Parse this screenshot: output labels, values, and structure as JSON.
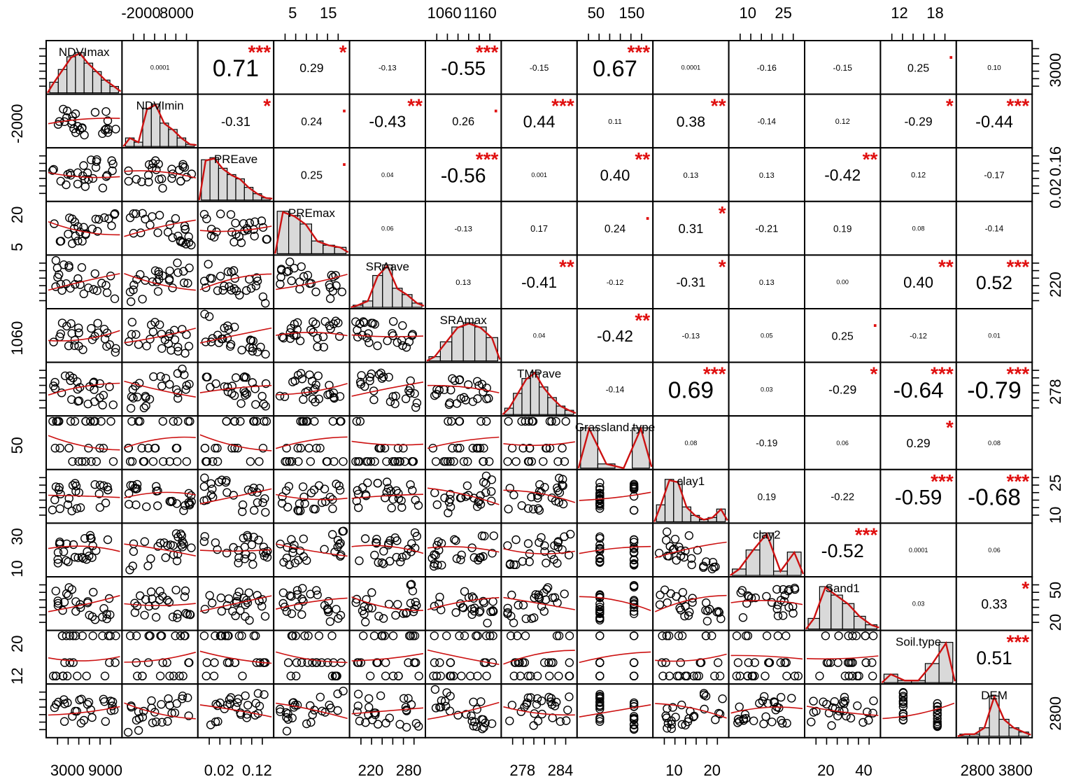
{
  "chart_data": {
    "type": "scatter",
    "variables": [
      "NDVImax",
      "NDVImin",
      "PREave",
      "PREmax",
      "SRAave",
      "SRAmax",
      "TMPave",
      "Grassland.type",
      "Clay1",
      "clay2",
      "Sand1",
      "Soil.type",
      "DEM"
    ],
    "diagonal_labels": [
      "NDVImax",
      "NDVImin",
      "PREave",
      "PREmax",
      "SRAave",
      "SRAmax",
      "TMPave",
      "Grassland.type",
      "clay1",
      "clay2",
      "Sand1",
      "Soil.type",
      "DEM"
    ],
    "top_axis_ticks": [
      [
        "-2000",
        "8000"
      ],
      [
        "5",
        "15"
      ],
      [
        "1060",
        "1160"
      ],
      [
        "50",
        "150"
      ],
      [
        "10",
        "25"
      ],
      [
        "12",
        "18"
      ]
    ],
    "bottom_axis_ticks": [
      [
        "3000",
        "9000"
      ],
      [
        "0.02",
        "0.12"
      ],
      [
        "220",
        "280"
      ],
      [
        "278",
        "284"
      ],
      [
        "10",
        "20"
      ],
      [
        "20",
        "40"
      ],
      [
        "2800",
        "3800"
      ]
    ],
    "left_axis_ticks": [
      [
        "-2000"
      ],
      [
        "20",
        "5"
      ],
      [
        "1060"
      ],
      [
        "50"
      ],
      [
        "30",
        "10"
      ],
      [
        "20",
        "12"
      ]
    ],
    "right_axis_ticks": [
      [
        "3000"
      ],
      [
        "0.16",
        "0.02"
      ],
      [
        "220"
      ],
      [
        "278"
      ],
      [
        "25",
        "10"
      ],
      [
        "50",
        "20"
      ],
      [
        "2800"
      ]
    ],
    "correlations": [
      {
        "row": 0,
        "col": 1,
        "r": "0.0001",
        "stars": ""
      },
      {
        "row": 0,
        "col": 2,
        "r": "0.71",
        "stars": "***"
      },
      {
        "row": 0,
        "col": 3,
        "r": "0.29",
        "stars": "*"
      },
      {
        "row": 0,
        "col": 4,
        "r": "-0.13",
        "stars": ""
      },
      {
        "row": 0,
        "col": 5,
        "r": "-0.55",
        "stars": "***"
      },
      {
        "row": 0,
        "col": 6,
        "r": "-0.15",
        "stars": ""
      },
      {
        "row": 0,
        "col": 7,
        "r": "0.67",
        "stars": "***"
      },
      {
        "row": 0,
        "col": 8,
        "r": "0.0001",
        "stars": ""
      },
      {
        "row": 0,
        "col": 9,
        "r": "-0.16",
        "stars": ""
      },
      {
        "row": 0,
        "col": 10,
        "r": "-0.15",
        "stars": ""
      },
      {
        "row": 0,
        "col": 11,
        "r": "0.25",
        "stars": "."
      },
      {
        "row": 0,
        "col": 12,
        "r": "0.10",
        "stars": ""
      },
      {
        "row": 1,
        "col": 2,
        "r": "-0.31",
        "stars": "*"
      },
      {
        "row": 1,
        "col": 3,
        "r": "0.24",
        "stars": "."
      },
      {
        "row": 1,
        "col": 4,
        "r": "-0.43",
        "stars": "**"
      },
      {
        "row": 1,
        "col": 5,
        "r": "0.26",
        "stars": "."
      },
      {
        "row": 1,
        "col": 6,
        "r": "0.44",
        "stars": "***"
      },
      {
        "row": 1,
        "col": 7,
        "r": "0.11",
        "stars": ""
      },
      {
        "row": 1,
        "col": 8,
        "r": "0.38",
        "stars": "**"
      },
      {
        "row": 1,
        "col": 9,
        "r": "-0.14",
        "stars": ""
      },
      {
        "row": 1,
        "col": 10,
        "r": "0.12",
        "stars": ""
      },
      {
        "row": 1,
        "col": 11,
        "r": "-0.29",
        "stars": "*"
      },
      {
        "row": 1,
        "col": 12,
        "r": "-0.44",
        "stars": "***"
      },
      {
        "row": 2,
        "col": 3,
        "r": "0.25",
        "stars": "."
      },
      {
        "row": 2,
        "col": 4,
        "r": "0.04",
        "stars": ""
      },
      {
        "row": 2,
        "col": 5,
        "r": "-0.56",
        "stars": "***"
      },
      {
        "row": 2,
        "col": 6,
        "r": "0.001",
        "stars": ""
      },
      {
        "row": 2,
        "col": 7,
        "r": "0.40",
        "stars": "**"
      },
      {
        "row": 2,
        "col": 8,
        "r": "0.13",
        "stars": ""
      },
      {
        "row": 2,
        "col": 9,
        "r": "0.13",
        "stars": ""
      },
      {
        "row": 2,
        "col": 10,
        "r": "-0.42",
        "stars": "**"
      },
      {
        "row": 2,
        "col": 11,
        "r": "0.12",
        "stars": ""
      },
      {
        "row": 2,
        "col": 12,
        "r": "-0.17",
        "stars": ""
      },
      {
        "row": 3,
        "col": 4,
        "r": "0.06",
        "stars": ""
      },
      {
        "row": 3,
        "col": 5,
        "r": "-0.13",
        "stars": ""
      },
      {
        "row": 3,
        "col": 6,
        "r": "0.17",
        "stars": ""
      },
      {
        "row": 3,
        "col": 7,
        "r": "0.24",
        "stars": "."
      },
      {
        "row": 3,
        "col": 8,
        "r": "0.31",
        "stars": "*"
      },
      {
        "row": 3,
        "col": 9,
        "r": "-0.21",
        "stars": ""
      },
      {
        "row": 3,
        "col": 10,
        "r": "0.19",
        "stars": ""
      },
      {
        "row": 3,
        "col": 11,
        "r": "0.08",
        "stars": ""
      },
      {
        "row": 3,
        "col": 12,
        "r": "-0.14",
        "stars": ""
      },
      {
        "row": 4,
        "col": 5,
        "r": "0.13",
        "stars": ""
      },
      {
        "row": 4,
        "col": 6,
        "r": "-0.41",
        "stars": "**"
      },
      {
        "row": 4,
        "col": 7,
        "r": "-0.12",
        "stars": ""
      },
      {
        "row": 4,
        "col": 8,
        "r": "-0.31",
        "stars": "*"
      },
      {
        "row": 4,
        "col": 9,
        "r": "0.13",
        "stars": ""
      },
      {
        "row": 4,
        "col": 10,
        "r": "0.00",
        "stars": ""
      },
      {
        "row": 4,
        "col": 11,
        "r": "0.40",
        "stars": "**"
      },
      {
        "row": 4,
        "col": 12,
        "r": "0.52",
        "stars": "***"
      },
      {
        "row": 5,
        "col": 6,
        "r": "0.04",
        "stars": ""
      },
      {
        "row": 5,
        "col": 7,
        "r": "-0.42",
        "stars": "**"
      },
      {
        "row": 5,
        "col": 8,
        "r": "-0.13",
        "stars": ""
      },
      {
        "row": 5,
        "col": 9,
        "r": "0.05",
        "stars": ""
      },
      {
        "row": 5,
        "col": 10,
        "r": "0.25",
        "stars": "."
      },
      {
        "row": 5,
        "col": 11,
        "r": "-0.12",
        "stars": ""
      },
      {
        "row": 5,
        "col": 12,
        "r": "0.01",
        "stars": ""
      },
      {
        "row": 6,
        "col": 7,
        "r": "-0.14",
        "stars": ""
      },
      {
        "row": 6,
        "col": 8,
        "r": "0.69",
        "stars": "***"
      },
      {
        "row": 6,
        "col": 9,
        "r": "0.03",
        "stars": ""
      },
      {
        "row": 6,
        "col": 10,
        "r": "-0.29",
        "stars": "*"
      },
      {
        "row": 6,
        "col": 11,
        "r": "-0.64",
        "stars": "***"
      },
      {
        "row": 6,
        "col": 12,
        "r": "-0.79",
        "stars": "***"
      },
      {
        "row": 7,
        "col": 8,
        "r": "0.08",
        "stars": ""
      },
      {
        "row": 7,
        "col": 9,
        "r": "-0.19",
        "stars": ""
      },
      {
        "row": 7,
        "col": 10,
        "r": "0.06",
        "stars": ""
      },
      {
        "row": 7,
        "col": 11,
        "r": "0.29",
        "stars": "*"
      },
      {
        "row": 7,
        "col": 12,
        "r": "0.08",
        "stars": ""
      },
      {
        "row": 8,
        "col": 9,
        "r": "0.19",
        "stars": ""
      },
      {
        "row": 8,
        "col": 10,
        "r": "-0.22",
        "stars": ""
      },
      {
        "row": 8,
        "col": 11,
        "r": "-0.59",
        "stars": "***"
      },
      {
        "row": 8,
        "col": 12,
        "r": "-0.68",
        "stars": "***"
      },
      {
        "row": 9,
        "col": 10,
        "r": "-0.52",
        "stars": "***"
      },
      {
        "row": 9,
        "col": 11,
        "r": "0.0001",
        "stars": ""
      },
      {
        "row": 9,
        "col": 12,
        "r": "0.06",
        "stars": ""
      },
      {
        "row": 10,
        "col": 11,
        "r": "0.03",
        "stars": ""
      },
      {
        "row": 10,
        "col": 12,
        "r": "0.33",
        "stars": "*"
      },
      {
        "row": 11,
        "col": 12,
        "r": "0.51",
        "stars": "***"
      }
    ],
    "histogram_heights": [
      [
        0.25,
        0.55,
        0.85,
        0.95,
        0.7,
        0.5,
        0.3,
        0.15
      ],
      [
        0.2,
        0.1,
        0.9,
        1.0,
        0.55,
        0.4,
        0.2,
        0.05
      ],
      [
        0.95,
        1.0,
        0.75,
        0.6,
        0.5,
        0.3,
        0.15,
        0.05
      ],
      [
        1.0,
        0.9,
        0.7,
        0.3,
        0.2,
        0.15
      ],
      [
        0.05,
        0.15,
        0.75,
        1.0,
        0.45,
        0.3,
        0.1
      ],
      [
        0.1,
        0.45,
        0.8,
        0.9,
        0.8,
        0.55
      ],
      [
        0.15,
        0.5,
        0.85,
        1.0,
        0.65,
        0.4,
        0.2,
        0.1
      ],
      [
        0.95,
        0.1,
        0.0,
        0.95
      ],
      [
        0.4,
        1.0,
        0.95,
        0.35,
        0.15,
        0.05,
        0.1,
        0.3
      ],
      [
        0.15,
        0.6,
        1.0,
        0.1,
        0.55
      ],
      [
        0.25,
        1.0,
        0.8,
        0.6,
        0.3,
        0.1
      ],
      [
        0.2,
        0.05,
        0.05,
        0.45,
        0.95
      ],
      [
        0.05,
        0.05,
        0.2,
        0.95,
        0.4,
        0.2,
        0.1
      ]
    ],
    "scatter_seed": 12345,
    "colors": {
      "stars": "#e01010",
      "smooth": "#cc1111",
      "hist_fill": "#d9d9d9",
      "points": "#000000"
    }
  }
}
